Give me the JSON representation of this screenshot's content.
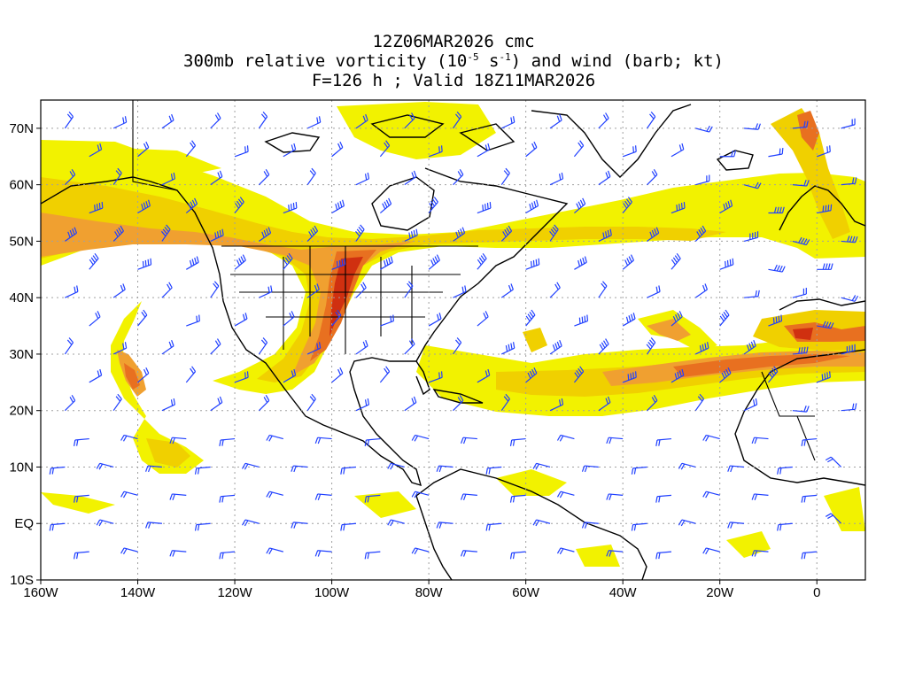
{
  "header": {
    "line1": "12Z06MAR2026 cmc",
    "line2_pre": "300mb relative vorticity (10",
    "line2_exp1": "-5",
    "line2_mid": " s",
    "line2_exp2": "-1",
    "line2_post": ") and wind (barb; kt)",
    "line3": "F=126 h ; Valid 18Z11MAR2026"
  },
  "map": {
    "lon_range": [
      -160,
      10
    ],
    "lat_range": [
      -10,
      75
    ],
    "lat_labels": [
      {
        "lat": 70,
        "text": "70N"
      },
      {
        "lat": 60,
        "text": "60N"
      },
      {
        "lat": 50,
        "text": "50N"
      },
      {
        "lat": 40,
        "text": "40N"
      },
      {
        "lat": 30,
        "text": "30N"
      },
      {
        "lat": 20,
        "text": "20N"
      },
      {
        "lat": 10,
        "text": "10N"
      },
      {
        "lat": 0,
        "text": "EQ"
      },
      {
        "lat": -10,
        "text": "10S"
      }
    ],
    "lon_labels": [
      {
        "lon": -160,
        "text": "160W"
      },
      {
        "lon": -140,
        "text": "140W"
      },
      {
        "lon": -120,
        "text": "120W"
      },
      {
        "lon": -100,
        "text": "100W"
      },
      {
        "lon": -80,
        "text": "80W"
      },
      {
        "lon": -60,
        "text": "60W"
      },
      {
        "lon": -40,
        "text": "40W"
      },
      {
        "lon": -20,
        "text": "20W"
      },
      {
        "lon": 0,
        "text": "0"
      }
    ],
    "colors": {
      "level1": "#f2f200",
      "level2": "#f0d000",
      "level3": "#f0a030",
      "level4": "#e87020",
      "level5": "#d03010",
      "barb": "#2040ff",
      "coast": "#000000",
      "grid": "#a0a0a0"
    }
  }
}
